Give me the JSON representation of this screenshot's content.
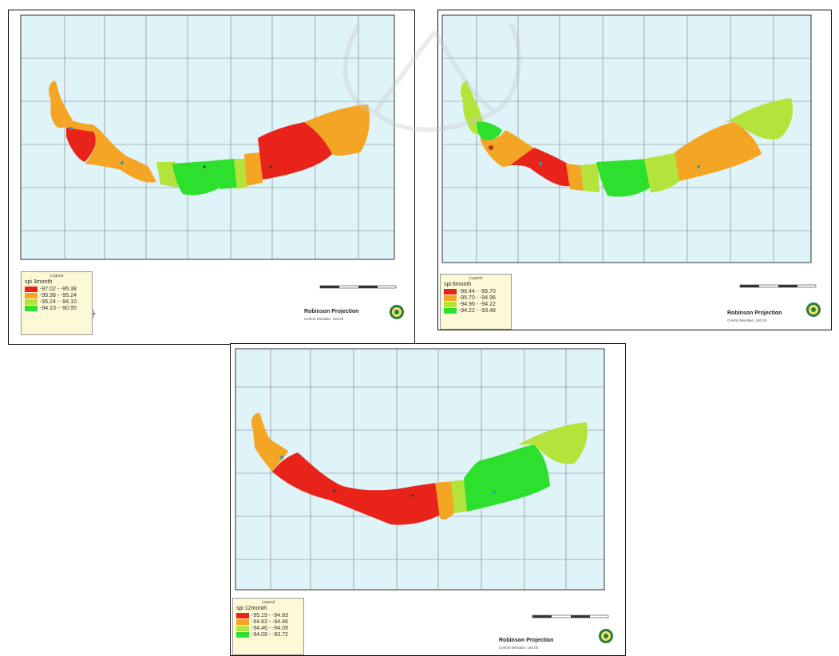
{
  "colors": {
    "sea": "#dff4f9",
    "class1": "#e8231a",
    "class2": "#f4a523",
    "class3": "#b4e33b",
    "class4": "#2ee02e",
    "legend_bg": "#fdf8d6",
    "grid": "#6b6b6b",
    "point": "#1aa3c8"
  },
  "maps": [
    {
      "legend_title": "Legend",
      "field": "spi 3month",
      "classes": [
        {
          "label": "-97.02 - -95.38",
          "color": "#e8231a"
        },
        {
          "label": "-95.38 - -95.24",
          "color": "#f4a523"
        },
        {
          "label": "-95.24 - -94.10",
          "color": "#b4e33b"
        },
        {
          "label": "-94.10 - -90.95",
          "color": "#2ee02e"
        }
      ],
      "projection": "Robinson Projection",
      "meridian": "Central Meridian: 150.00",
      "scale_unit": "Kilometers"
    },
    {
      "legend_title": "Legend",
      "field": "spi 6month",
      "classes": [
        {
          "label": "-96.44 - -95.70",
          "color": "#e8231a"
        },
        {
          "label": "-95.70 - -94.96",
          "color": "#f4a523"
        },
        {
          "label": "-94.96 - -94.22",
          "color": "#b4e33b"
        },
        {
          "label": "-94.22 - -93.48",
          "color": "#2ee02e"
        }
      ],
      "projection": "Robinson Projection",
      "meridian": "Central Meridian: 150.00",
      "scale_unit": "Kilometers"
    },
    {
      "legend_title": "Legend",
      "field": "spi 12month",
      "classes": [
        {
          "label": "-95.19 - -94.83",
          "color": "#e8231a"
        },
        {
          "label": "-94.83 - -94.46",
          "color": "#f4a523"
        },
        {
          "label": "-94.46 - -94.09",
          "color": "#b4e33b"
        },
        {
          "label": "-94.09 - -93.72",
          "color": "#2ee02e"
        }
      ],
      "projection": "Robinson Projection",
      "meridian": "Central Meridian: 150.00",
      "scale_unit": "Kilometers"
    }
  ]
}
